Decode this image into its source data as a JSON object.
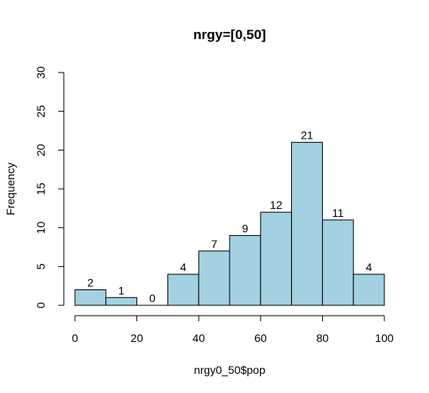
{
  "chart_data": {
    "type": "bar",
    "title": "nrgy=[0,50]",
    "xlabel": "nrgy0_50$pop",
    "ylabel": "Frequency",
    "bin_edges": [
      0,
      10,
      20,
      30,
      40,
      50,
      60,
      70,
      80,
      90,
      100
    ],
    "values": [
      2,
      1,
      0,
      4,
      7,
      9,
      12,
      21,
      11,
      4
    ],
    "count_labels": [
      "2",
      "1",
      "0",
      "4",
      "7",
      "9",
      "12",
      "21",
      "11",
      "4"
    ],
    "xlim": [
      0,
      100
    ],
    "ylim": [
      0,
      30
    ],
    "x_ticks": [
      0,
      20,
      40,
      60,
      80,
      100
    ],
    "x_tick_labels": [
      "0",
      "20",
      "40",
      "60",
      "80",
      "100"
    ],
    "y_ticks": [
      0,
      5,
      10,
      15,
      20,
      25,
      30
    ],
    "y_tick_labels": [
      "0",
      "5",
      "10",
      "15",
      "20",
      "25",
      "30"
    ],
    "bar_color": "#a3d1e1",
    "grid": false,
    "legend": "none"
  }
}
